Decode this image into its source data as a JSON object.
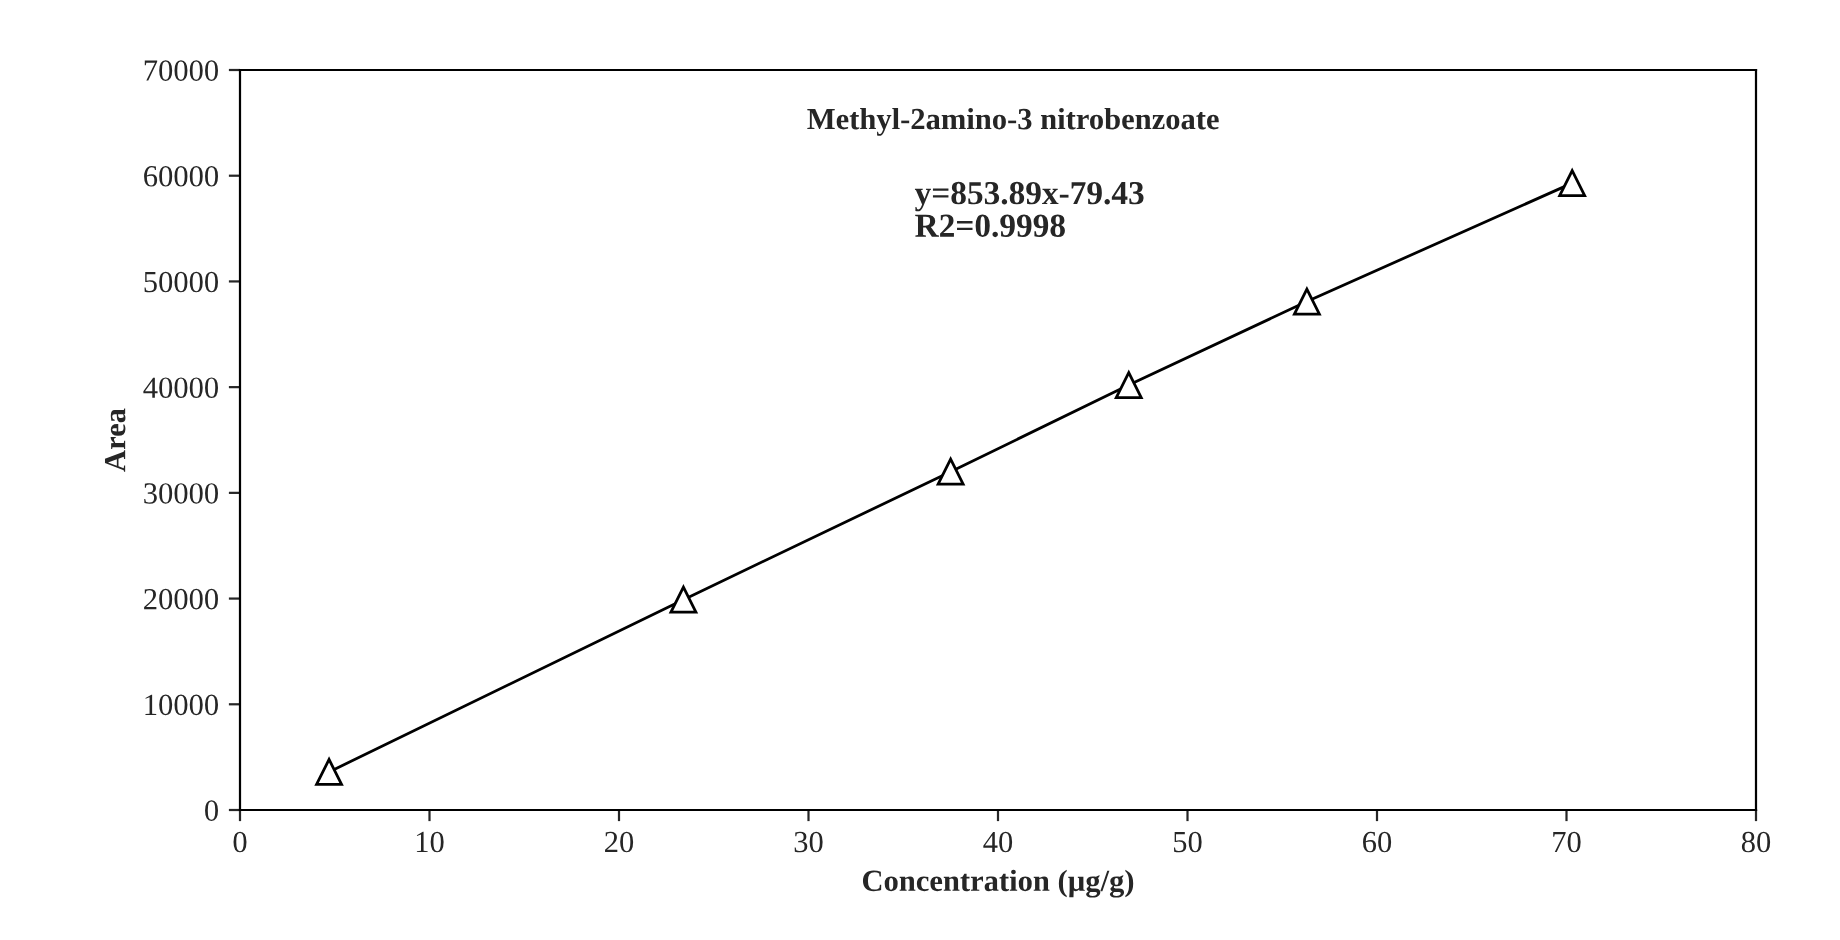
{
  "chart_data": {
    "type": "line",
    "title": "Methyl-2amino-3 nitrobenzoate",
    "xlabel": "Concentration (µg/g)",
    "ylabel": "Area",
    "annotations": [
      "y=853.89x-79.43\nR2=0.9998"
    ],
    "series": [
      {
        "color": "#000000",
        "x": [
          4.7,
          23.4,
          37.5,
          46.9,
          56.3,
          70.3
        ],
        "values": [
          3600,
          19900,
          32000,
          40200,
          48100,
          59300
        ]
      }
    ],
    "marker": "triangle",
    "line_style": "solid",
    "grid": false,
    "xlim": [
      0,
      80
    ],
    "xticks": [
      0,
      10,
      20,
      30,
      40,
      50,
      60,
      70,
      80
    ],
    "ylim": [
      0,
      70000
    ],
    "yticks": [
      0,
      10000,
      20000,
      30000,
      40000,
      50000,
      60000,
      70000
    ]
  }
}
